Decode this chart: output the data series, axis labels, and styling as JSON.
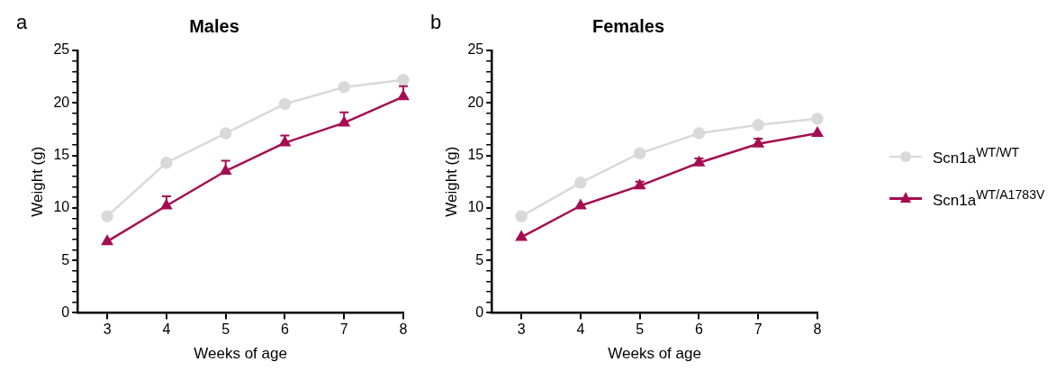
{
  "chart_data": [
    {
      "type": "line",
      "title": "Males",
      "xlabel": "Weeks of age",
      "ylabel": "Weight (g)",
      "annotations": [
        "a"
      ],
      "x": [
        3,
        4,
        5,
        6,
        7,
        8
      ],
      "xlim": [
        2.5,
        8
      ],
      "xticks": [
        3,
        4,
        5,
        6,
        7,
        8
      ],
      "ylim": [
        0,
        25
      ],
      "yticks": [
        0,
        {
          "value": 1,
          "label": null
        },
        {
          "value": 2,
          "label": null
        },
        {
          "value": 3,
          "label": null
        },
        {
          "value": 4,
          "label": null
        },
        5,
        {
          "value": 6,
          "label": null
        },
        {
          "value": 7,
          "label": null
        },
        {
          "value": 8,
          "label": null
        },
        {
          "value": 9,
          "label": null
        },
        10,
        {
          "value": 11,
          "label": null
        },
        {
          "value": 12,
          "label": null
        },
        {
          "value": 13,
          "label": null
        },
        {
          "value": 14,
          "label": null
        },
        15,
        {
          "value": 16,
          "label": null
        },
        {
          "value": 17,
          "label": null
        },
        {
          "value": 18,
          "label": null
        },
        {
          "value": 19,
          "label": null
        },
        20,
        {
          "value": 21,
          "label": null
        },
        {
          "value": 22,
          "label": null
        },
        {
          "value": 23,
          "label": null
        },
        {
          "value": 24,
          "label": null
        },
        25
      ],
      "grid": false,
      "legend": false,
      "line_style": "solid",
      "series": [
        {
          "color": "#d9d9d9",
          "marker": "circle",
          "values": [
            9.2,
            14.3,
            17.1,
            19.9,
            21.5,
            22.2
          ],
          "errors": [
            null,
            [
              14.3,
              14.6
            ],
            null,
            null,
            null,
            null
          ]
        },
        {
          "color": "#a50d52",
          "marker": "triangle",
          "values": [
            6.8,
            10.2,
            13.5,
            16.2,
            18.1,
            20.6
          ],
          "errors": [
            null,
            [
              10.2,
              11.1
            ],
            [
              13.5,
              14.5
            ],
            [
              16.2,
              16.9
            ],
            [
              18.1,
              19.1
            ],
            [
              20.6,
              21.6
            ]
          ]
        }
      ]
    },
    {
      "type": "line",
      "title": "Females",
      "xlabel": "Weeks of age",
      "ylabel": "Weight (g)",
      "annotations": [
        "b"
      ],
      "x": [
        3,
        4,
        5,
        6,
        7,
        8
      ],
      "xlim": [
        2.5,
        8
      ],
      "xticks": [
        3,
        4,
        5,
        6,
        7,
        8
      ],
      "ylim": [
        0,
        25
      ],
      "yticks": [
        0,
        {
          "value": 1,
          "label": null
        },
        {
          "value": 2,
          "label": null
        },
        {
          "value": 3,
          "label": null
        },
        {
          "value": 4,
          "label": null
        },
        5,
        {
          "value": 6,
          "label": null
        },
        {
          "value": 7,
          "label": null
        },
        {
          "value": 8,
          "label": null
        },
        {
          "value": 9,
          "label": null
        },
        10,
        {
          "value": 11,
          "label": null
        },
        {
          "value": 12,
          "label": null
        },
        {
          "value": 13,
          "label": null
        },
        {
          "value": 14,
          "label": null
        },
        15,
        {
          "value": 16,
          "label": null
        },
        {
          "value": 17,
          "label": null
        },
        {
          "value": 18,
          "label": null
        },
        {
          "value": 19,
          "label": null
        },
        20,
        {
          "value": 21,
          "label": null
        },
        {
          "value": 22,
          "label": null
        },
        {
          "value": 23,
          "label": null
        },
        {
          "value": 24,
          "label": null
        },
        25
      ],
      "grid": false,
      "legend": "right",
      "line_style": "solid",
      "series": [
        {
          "name": "Scn1a$^{WT/WT}$",
          "color": "#d9d9d9",
          "marker": "circle",
          "values": [
            9.2,
            12.4,
            15.2,
            17.1,
            17.9,
            18.5
          ]
        },
        {
          "name": "Scn1a$^{WT/A1783V}$",
          "color": "#a50d52",
          "marker": "triangle",
          "values": [
            7.2,
            10.2,
            12.1,
            14.3,
            16.1,
            17.1
          ],
          "errors": [
            null,
            null,
            [
              12.1,
              12.5
            ],
            [
              14.3,
              14.7
            ],
            [
              16.1,
              16.6
            ],
            null
          ]
        }
      ]
    }
  ]
}
